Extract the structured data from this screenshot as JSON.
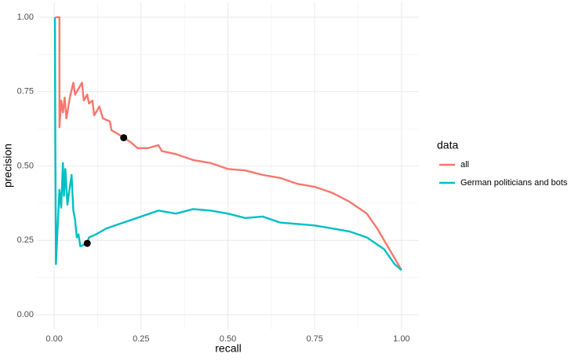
{
  "chart_data": {
    "type": "line",
    "xlabel": "recall",
    "ylabel": "precision",
    "legend_title": "data",
    "legend_position": "right",
    "grid": true,
    "xlim": [
      -0.05,
      1.05
    ],
    "ylim": [
      -0.05,
      1.05
    ],
    "xticks": [
      {
        "value": 0,
        "label": "0.00"
      },
      {
        "value": 0.25,
        "label": "0.25"
      },
      {
        "value": 0.5,
        "label": "0.50"
      },
      {
        "value": 0.75,
        "label": "0.75"
      },
      {
        "value": 1,
        "label": "1.00"
      }
    ],
    "yticks": [
      {
        "value": 0,
        "label": "0.00"
      },
      {
        "value": 0.25,
        "label": "0.25"
      },
      {
        "value": 0.5,
        "label": "0.50"
      },
      {
        "value": 0.75,
        "label": "0.75"
      },
      {
        "value": 1,
        "label": "1.00"
      }
    ],
    "series": [
      {
        "name": "all",
        "color": "#F8766D",
        "x": [
          0.003,
          0.015,
          0.015,
          0.02,
          0.025,
          0.03,
          0.035,
          0.045,
          0.055,
          0.06,
          0.07,
          0.08,
          0.085,
          0.095,
          0.1,
          0.11,
          0.115,
          0.13,
          0.14,
          0.16,
          0.165,
          0.18,
          0.2,
          0.22,
          0.24,
          0.27,
          0.3,
          0.31,
          0.35,
          0.4,
          0.45,
          0.5,
          0.55,
          0.6,
          0.65,
          0.7,
          0.75,
          0.8,
          0.85,
          0.9,
          0.93,
          0.96,
          0.98,
          1.0
        ],
        "values": [
          1.0,
          1.0,
          0.63,
          0.72,
          0.68,
          0.73,
          0.66,
          0.73,
          0.78,
          0.74,
          0.76,
          0.78,
          0.72,
          0.74,
          0.71,
          0.72,
          0.67,
          0.7,
          0.66,
          0.65,
          0.62,
          0.61,
          0.595,
          0.58,
          0.56,
          0.56,
          0.57,
          0.55,
          0.54,
          0.52,
          0.51,
          0.49,
          0.485,
          0.47,
          0.46,
          0.44,
          0.43,
          0.41,
          0.38,
          0.34,
          0.29,
          0.23,
          0.19,
          0.15
        ]
      },
      {
        "name": "German politicians and bots",
        "color": "#00BFC4",
        "x": [
          0.002,
          0.003,
          0.005,
          0.01,
          0.015,
          0.02,
          0.025,
          0.028,
          0.032,
          0.038,
          0.045,
          0.05,
          0.055,
          0.06,
          0.065,
          0.07,
          0.075,
          0.085,
          0.095,
          0.1,
          0.12,
          0.15,
          0.2,
          0.25,
          0.3,
          0.35,
          0.4,
          0.45,
          0.5,
          0.55,
          0.6,
          0.65,
          0.7,
          0.75,
          0.8,
          0.85,
          0.9,
          0.95,
          0.98,
          1.0
        ],
        "values": [
          1.0,
          0.62,
          0.17,
          0.3,
          0.42,
          0.36,
          0.51,
          0.4,
          0.49,
          0.37,
          0.43,
          0.47,
          0.35,
          0.32,
          0.26,
          0.27,
          0.23,
          0.235,
          0.24,
          0.26,
          0.27,
          0.29,
          0.31,
          0.33,
          0.35,
          0.34,
          0.355,
          0.35,
          0.34,
          0.325,
          0.33,
          0.31,
          0.305,
          0.3,
          0.29,
          0.28,
          0.26,
          0.22,
          0.17,
          0.15
        ]
      }
    ],
    "points": {
      "color": "#000000",
      "x": [
        0.2,
        0.095
      ],
      "values": [
        0.595,
        0.24
      ]
    }
  }
}
